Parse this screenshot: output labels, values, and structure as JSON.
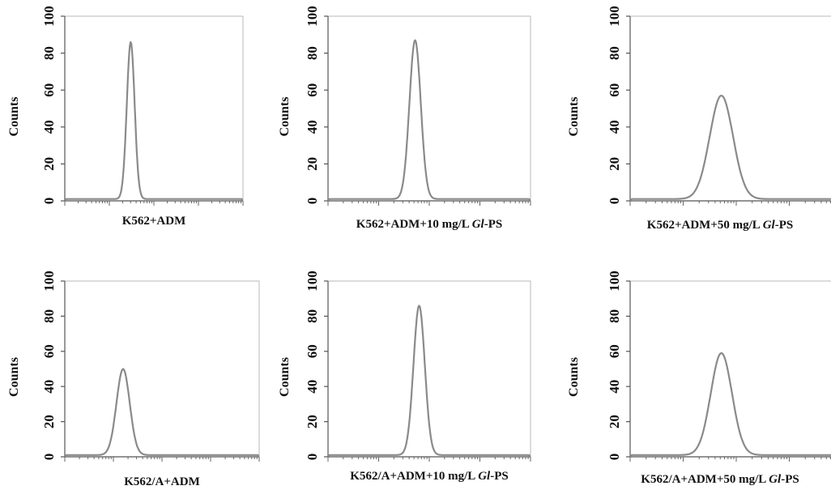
{
  "chart_data": [
    {
      "type": "area",
      "panel": "top-left",
      "ylabel": "Counts",
      "ylim": [
        0,
        100
      ],
      "yticks": [
        "0",
        "20",
        "40",
        "60",
        "80",
        "100"
      ],
      "xaxis_scale": "log",
      "caption": [
        {
          "text": "K562+ADM",
          "italic": false
        }
      ],
      "peak": {
        "position": 0.37,
        "height": 86,
        "width": 0.022
      },
      "baseline": 1
    },
    {
      "type": "area",
      "panel": "top-middle",
      "ylabel": "Counts",
      "ylim": [
        0,
        100
      ],
      "yticks": [
        "0",
        "20",
        "40",
        "60",
        "80",
        "100"
      ],
      "xaxis_scale": "log",
      "caption": [
        {
          "text": "K562+ADM+10 mg/L ",
          "italic": false
        },
        {
          "text": "Gl",
          "italic": true
        },
        {
          "text": "-PS",
          "italic": false
        }
      ],
      "peak": {
        "position": 0.43,
        "height": 87,
        "width": 0.028
      },
      "baseline": 1
    },
    {
      "type": "area",
      "panel": "top-right",
      "ylabel": "Counts",
      "ylim": [
        0,
        100
      ],
      "yticks": [
        "0",
        "20",
        "40",
        "60",
        "80",
        "100"
      ],
      "xaxis_scale": "log",
      "caption": [
        {
          "text": "K562+ADM+50 mg/L ",
          "italic": false
        },
        {
          "text": "Gl",
          "italic": true
        },
        {
          "text": "-PS",
          "italic": false
        }
      ],
      "peak": {
        "position": 0.43,
        "height": 57,
        "width": 0.055
      },
      "baseline": 1
    },
    {
      "type": "area",
      "panel": "bottom-left",
      "ylabel": "Counts",
      "ylim": [
        0,
        100
      ],
      "yticks": [
        "0",
        "20",
        "40",
        "60",
        "80",
        "100"
      ],
      "xaxis_scale": "log",
      "caption": [
        {
          "text": "K562/A+ADM",
          "italic": false
        }
      ],
      "peak": {
        "position": 0.3,
        "height": 50,
        "width": 0.034
      },
      "baseline": 1
    },
    {
      "type": "area",
      "panel": "bottom-middle",
      "ylabel": "Counts",
      "ylim": [
        0,
        100
      ],
      "yticks": [
        "0",
        "20",
        "40",
        "60",
        "80",
        "100"
      ],
      "xaxis_scale": "log",
      "caption": [
        {
          "text": "K562/A+ADM+10 mg/L ",
          "italic": false
        },
        {
          "text": "Gl",
          "italic": true
        },
        {
          "text": "-PS",
          "italic": false
        }
      ],
      "peak": {
        "position": 0.45,
        "height": 86,
        "width": 0.028
      },
      "baseline": 1
    },
    {
      "type": "area",
      "panel": "bottom-right",
      "ylabel": "Counts",
      "ylim": [
        0,
        100
      ],
      "yticks": [
        "0",
        "20",
        "40",
        "60",
        "80",
        "100"
      ],
      "xaxis_scale": "log",
      "caption": [
        {
          "text": "K562/A+ADM+50 mg/L ",
          "italic": false
        },
        {
          "text": "Gl",
          "italic": true
        },
        {
          "text": "-PS",
          "italic": false
        }
      ],
      "peak": {
        "position": 0.43,
        "height": 59,
        "width": 0.05
      },
      "baseline": 1
    }
  ]
}
